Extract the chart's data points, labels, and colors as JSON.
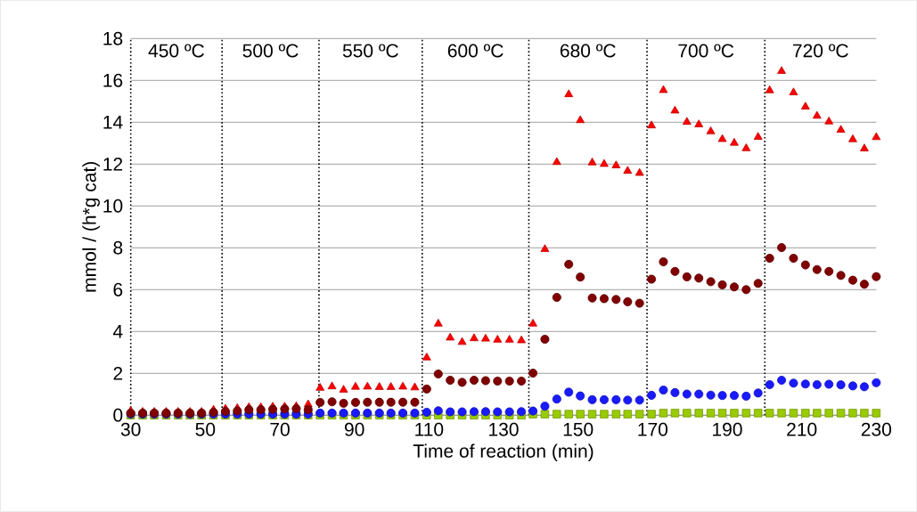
{
  "chart_data": {
    "type": "scatter",
    "xlabel": "Time of reaction (min)",
    "ylabel": "mmol / (h*g cat)",
    "x": [
      30.0,
      33.2,
      36.3,
      39.5,
      42.7,
      45.9,
      49.0,
      52.2,
      55.4,
      58.6,
      61.7,
      64.9,
      68.1,
      71.3,
      74.4,
      77.6,
      80.8,
      84.0,
      87.1,
      90.3,
      93.5,
      96.7,
      99.8,
      103.0,
      106.2,
      109.4,
      112.5,
      115.7,
      118.9,
      122.1,
      125.2,
      128.4,
      131.6,
      134.8,
      137.9,
      141.1,
      144.3,
      147.5,
      150.6,
      153.8,
      157.0,
      160.2,
      163.3,
      166.5,
      169.7,
      172.9,
      176.0,
      179.2,
      182.4,
      185.6,
      188.7,
      191.9,
      195.1,
      198.3,
      201.4,
      204.6,
      207.8,
      211.0,
      214.1,
      217.3,
      220.5,
      223.7,
      226.8,
      230.0
    ],
    "series": [
      {
        "color": "#99cc00",
        "marker": "square",
        "values": [
          0,
          0,
          0,
          0,
          0,
          0,
          0,
          0,
          0,
          0,
          0,
          0,
          0,
          0,
          0,
          0,
          0,
          0,
          0,
          0,
          0,
          0,
          0,
          0,
          0,
          0,
          0,
          0,
          0,
          0,
          0,
          0,
          0,
          0,
          0.05,
          0.05,
          0.05,
          0.05,
          0.05,
          0.05,
          0.05,
          0.05,
          0.05,
          0.05,
          0.05,
          0.1,
          0.1,
          0.1,
          0.1,
          0.1,
          0.1,
          0.1,
          0.1,
          0.1,
          0.1,
          0.1,
          0.1,
          0.1,
          0.1,
          0.1,
          0.1,
          0.1,
          0.1,
          0.1
        ]
      },
      {
        "color": "#1a1aff",
        "marker": "circle",
        "values": [
          0.05,
          0.05,
          0.05,
          0.05,
          0.05,
          0.05,
          0.05,
          0.05,
          0.05,
          0.05,
          0.05,
          0.05,
          0.05,
          0.05,
          0.05,
          0.05,
          0.1,
          0.1,
          0.1,
          0.1,
          0.1,
          0.1,
          0.1,
          0.1,
          0.1,
          0.14,
          0.21,
          0.16,
          0.16,
          0.17,
          0.17,
          0.16,
          0.16,
          0.17,
          0.2,
          0.43,
          0.77,
          1.1,
          0.92,
          0.74,
          0.74,
          0.74,
          0.72,
          0.72,
          0.95,
          1.2,
          1.08,
          1.01,
          1.01,
          0.96,
          0.94,
          0.94,
          0.91,
          1.06,
          1.46,
          1.67,
          1.53,
          1.49,
          1.46,
          1.48,
          1.45,
          1.4,
          1.36,
          1.55
        ]
      },
      {
        "color": "#ff0000",
        "marker": "triangle",
        "values": [
          0.2,
          0.15,
          0.15,
          0.15,
          0.15,
          0.15,
          0.15,
          0.25,
          0.3,
          0.33,
          0.37,
          0.37,
          0.4,
          0.4,
          0.42,
          0.51,
          1.3,
          1.37,
          1.21,
          1.35,
          1.36,
          1.34,
          1.34,
          1.36,
          1.32,
          2.75,
          4.37,
          3.7,
          3.49,
          3.67,
          3.65,
          3.6,
          3.6,
          3.57,
          4.37,
          7.93,
          12.09,
          15.33,
          14.09,
          12.07,
          12.0,
          11.93,
          11.67,
          11.57,
          13.84,
          15.53,
          14.55,
          14.01,
          13.89,
          13.56,
          13.19,
          13.01,
          12.75,
          13.29,
          15.52,
          16.44,
          15.42,
          14.74,
          14.3,
          14.03,
          13.63,
          13.18,
          12.74,
          13.28
        ]
      },
      {
        "color": "#800000",
        "marker": "circle",
        "values": [
          0.1,
          0.1,
          0.1,
          0.1,
          0.1,
          0.1,
          0.1,
          0.14,
          0.18,
          0.2,
          0.26,
          0.26,
          0.28,
          0.3,
          0.31,
          0.26,
          0.61,
          0.64,
          0.57,
          0.61,
          0.62,
          0.62,
          0.62,
          0.62,
          0.62,
          1.25,
          1.97,
          1.67,
          1.57,
          1.67,
          1.65,
          1.63,
          1.63,
          1.63,
          2.01,
          3.63,
          5.63,
          7.21,
          6.6,
          5.6,
          5.57,
          5.53,
          5.42,
          5.35,
          6.5,
          7.33,
          6.87,
          6.61,
          6.55,
          6.38,
          6.23,
          6.13,
          6.0,
          6.3,
          7.5,
          8.01,
          7.5,
          7.18,
          6.96,
          6.87,
          6.68,
          6.45,
          6.26,
          6.62
        ]
      }
    ],
    "xlim": [
      30,
      230
    ],
    "xticks": [
      30,
      50,
      70,
      90,
      110,
      130,
      150,
      170,
      190,
      210,
      230
    ],
    "ylim": [
      0,
      18
    ],
    "yticks": [
      0,
      2,
      4,
      6,
      8,
      10,
      12,
      14,
      16,
      18
    ],
    "grid": "y",
    "ref_lines": [
      {
        "axis": "x",
        "value": 30,
        "label": "450 ºC",
        "color": "#000000",
        "line_style": "dotted"
      },
      {
        "axis": "x",
        "value": 54.5,
        "label": "500 ºC",
        "color": "#000000",
        "line_style": "dotted"
      },
      {
        "axis": "x",
        "value": 80.5,
        "label": "550 ºC",
        "color": "#000000",
        "line_style": "dotted"
      },
      {
        "axis": "x",
        "value": 108.2,
        "label": "600 ºC",
        "color": "#000000",
        "line_style": "dotted"
      },
      {
        "axis": "x",
        "value": 136.8,
        "label": "680 ºC",
        "color": "#000000",
        "line_style": "dotted"
      },
      {
        "axis": "x",
        "value": 168.5,
        "label": "700 ºC",
        "color": "#000000",
        "line_style": "dotted"
      },
      {
        "axis": "x",
        "value": 200.1,
        "label": "720 ºC",
        "color": "#000000",
        "line_style": "dotted"
      }
    ]
  }
}
